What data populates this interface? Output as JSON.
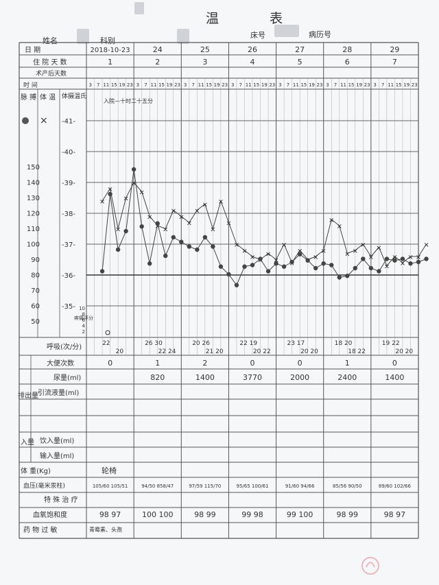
{
  "header": {
    "title": "温 表",
    "name_label": "姓名",
    "dept_label": "科别",
    "bed_label": "床号",
    "record_label": "病历号"
  },
  "rows": {
    "date_label": "日 期",
    "hospital_day_label": "住 院 天 数",
    "postop_day_label": "术产后天数",
    "time_label": "时 间",
    "pulse_label": "脉 搏",
    "temp_label": "体 温",
    "temp_method_label": "体摄温氏",
    "pain_label": "疼痛评分",
    "resp_label": "呼吸(次/分)",
    "stool_label": "大便次数",
    "urine_label": "尿量(ml)",
    "drain_label": "引流液量(ml)",
    "output_group_label": "排出量",
    "input_group_label": "入量",
    "intake_drink_label": "饮入量(ml)",
    "intake_infuse_label": "输入量(ml)",
    "weight_label": "体 重(Kg)",
    "weight_value": "轮椅",
    "bp_label": "血压(毫米汞柱)",
    "special_label": "特 殊 治 疗",
    "spo2_label": "血氧饱和度",
    "allergy_label": "药 物 过 敏",
    "allergy_value": "青霉素、头孢"
  },
  "days": [
    {
      "date": "2018-10-23",
      "hospital_day": "1",
      "stool": "0",
      "urine": "",
      "bp": "105/60 105/51",
      "spo2": "98 97",
      "resp": [
        "22",
        "20"
      ]
    },
    {
      "date": "24",
      "hospital_day": "2",
      "stool": "1",
      "urine": "820",
      "bp": "94/50 858/47",
      "spo2": "100 100",
      "resp": [
        "26 30",
        "22 24"
      ]
    },
    {
      "date": "25",
      "hospital_day": "3",
      "stool": "2",
      "urine": "1400",
      "bp": "97/59 115/70",
      "spo2": "98 99",
      "resp": [
        "20 26",
        "21 20"
      ]
    },
    {
      "date": "26",
      "hospital_day": "4",
      "stool": "0",
      "urine": "3770",
      "bp": "95/65 100/61",
      "spo2": "99 98",
      "resp": [
        "22 19",
        "20 22"
      ]
    },
    {
      "date": "27",
      "hospital_day": "5",
      "stool": "0",
      "urine": "2000",
      "bp": "91/60 94/66",
      "spo2": "99 100",
      "resp": [
        "23 17",
        "20 20"
      ]
    },
    {
      "date": "28",
      "hospital_day": "6",
      "stool": "1",
      "urine": "2400",
      "bp": "85/56 90/50",
      "spo2": "98 99",
      "resp": [
        "18 20",
        "18 22"
      ]
    },
    {
      "date": "29",
      "hospital_day": "7",
      "stool": "0",
      "urine": "1400",
      "bp": "89/60 102/66",
      "spo2": "98 97",
      "resp": [
        "19 22",
        "20 20"
      ]
    }
  ],
  "times": [
    "3",
    "7",
    "11",
    "15",
    "19",
    "23"
  ],
  "axis": {
    "temp_ticks": [
      "-41-",
      "-40-",
      "-39-",
      "-38-",
      "-37-",
      "-36-",
      "-35-"
    ],
    "pulse_ticks": [
      "150",
      "140",
      "130",
      "120",
      "110",
      "100",
      "90",
      "80",
      "70",
      "60",
      "50"
    ],
    "pain_ticks": [
      "10",
      "8",
      "6",
      "4",
      "2"
    ]
  },
  "annotation": "入院—十时二十五分",
  "chart_data": {
    "type": "line",
    "temp_ylim": [
      35,
      41
    ],
    "pulse_ylim": [
      40,
      160
    ],
    "temperature": [
      38.4,
      38.8,
      37.5,
      38.5,
      39.0,
      38.7,
      37.9,
      37.6,
      37.5,
      38.1,
      37.9,
      37.7,
      38.1,
      38.3,
      37.5,
      38.4,
      37.7,
      37.0,
      36.8,
      36.6,
      36.5,
      36.7,
      36.5,
      37.0,
      36.4,
      36.8,
      36.5,
      36.6,
      36.8,
      37.8,
      37.6,
      36.7,
      36.8,
      37.0,
      36.6,
      36.9,
      36.3,
      36.6,
      36.4,
      36.6,
      36.6,
      37.0
    ],
    "pulse": [
      84,
      134,
      98,
      110,
      150,
      113,
      89,
      115,
      94,
      106,
      103,
      100,
      98,
      106,
      100,
      87,
      82,
      75,
      87,
      88,
      92,
      84,
      89,
      87,
      90,
      95,
      91,
      86,
      89,
      88,
      80,
      81,
      86,
      92,
      86,
      84,
      92,
      91,
      92,
      89,
      90,
      92
    ],
    "pain": [
      null,
      1
    ]
  }
}
